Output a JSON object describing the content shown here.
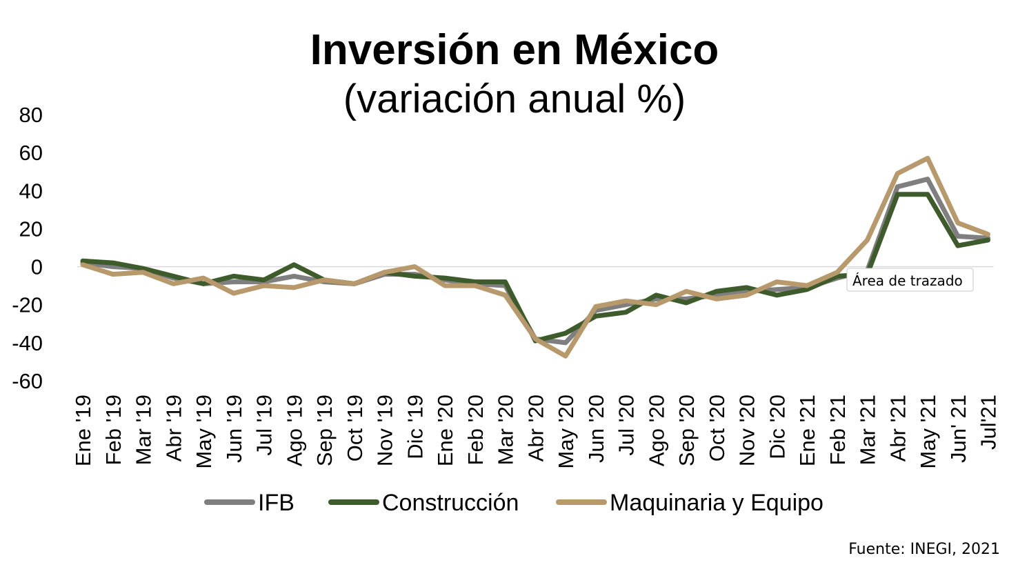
{
  "chart_data": {
    "type": "line",
    "title": "Inversión en México",
    "subtitle": "(variación anual %)",
    "ylim": [
      -60,
      80
    ],
    "yticks": [
      80,
      60,
      40,
      20,
      0,
      -20,
      -40,
      -60
    ],
    "ytick_labels": [
      "80",
      "60",
      "40",
      "20",
      "0",
      "-20",
      "-40",
      "-60"
    ],
    "categories": [
      "Ene '19",
      "Feb '19",
      "Mar '19",
      "Abr '19",
      "May '19",
      "Jun '19",
      "Jul '19",
      "Ago '19",
      "Sep '19",
      "Oct '19",
      "Nov '19",
      "Dic '19",
      "Ene '20",
      "Feb '20",
      "Mar '20",
      "Abr '20",
      "May '20",
      "Jun '20",
      "Jul '20",
      "Ago '20",
      "Sep '20",
      "Oct '20",
      "Nov '20",
      "Dic '20",
      "Ene '21",
      "Feb '21",
      "Mar '21",
      "Abr '21",
      "May '21",
      "Jun' 21",
      "Jul'21"
    ],
    "grid": false,
    "legend_position": "bottom",
    "series": [
      {
        "name": "IFB",
        "color": "#7f7f7f",
        "values": [
          2,
          0,
          -1,
          -6,
          -9,
          -8,
          -8,
          -5,
          -8,
          -9,
          -4,
          -4,
          -7,
          -9,
          -10,
          -38,
          -40,
          -23,
          -20,
          -17,
          -17,
          -15,
          -13,
          -12,
          -11,
          -6,
          -2,
          42,
          46,
          16,
          15
        ]
      },
      {
        "name": "Construcción",
        "color": "#3e5b2b",
        "values": [
          3,
          2,
          -1,
          -5,
          -9,
          -5,
          -7,
          1,
          -7,
          -9,
          -3,
          -5,
          -6,
          -8,
          -8,
          -39,
          -35,
          -26,
          -24,
          -15,
          -19,
          -13,
          -11,
          -15,
          -12,
          -5,
          -4,
          38,
          38,
          11,
          14
        ]
      },
      {
        "name": "Maquinaria y Equipo",
        "color": "#b8996b",
        "values": [
          1,
          -4,
          -3,
          -9,
          -6,
          -14,
          -10,
          -11,
          -7,
          -9,
          -3,
          0,
          -10,
          -10,
          -15,
          -38,
          -47,
          -21,
          -18,
          -20,
          -13,
          -17,
          -15,
          -8,
          -10,
          -3,
          14,
          49,
          57,
          23,
          17
        ]
      }
    ],
    "tooltip": "Área de trazado",
    "source": "Fuente: INEGI, 2021"
  }
}
